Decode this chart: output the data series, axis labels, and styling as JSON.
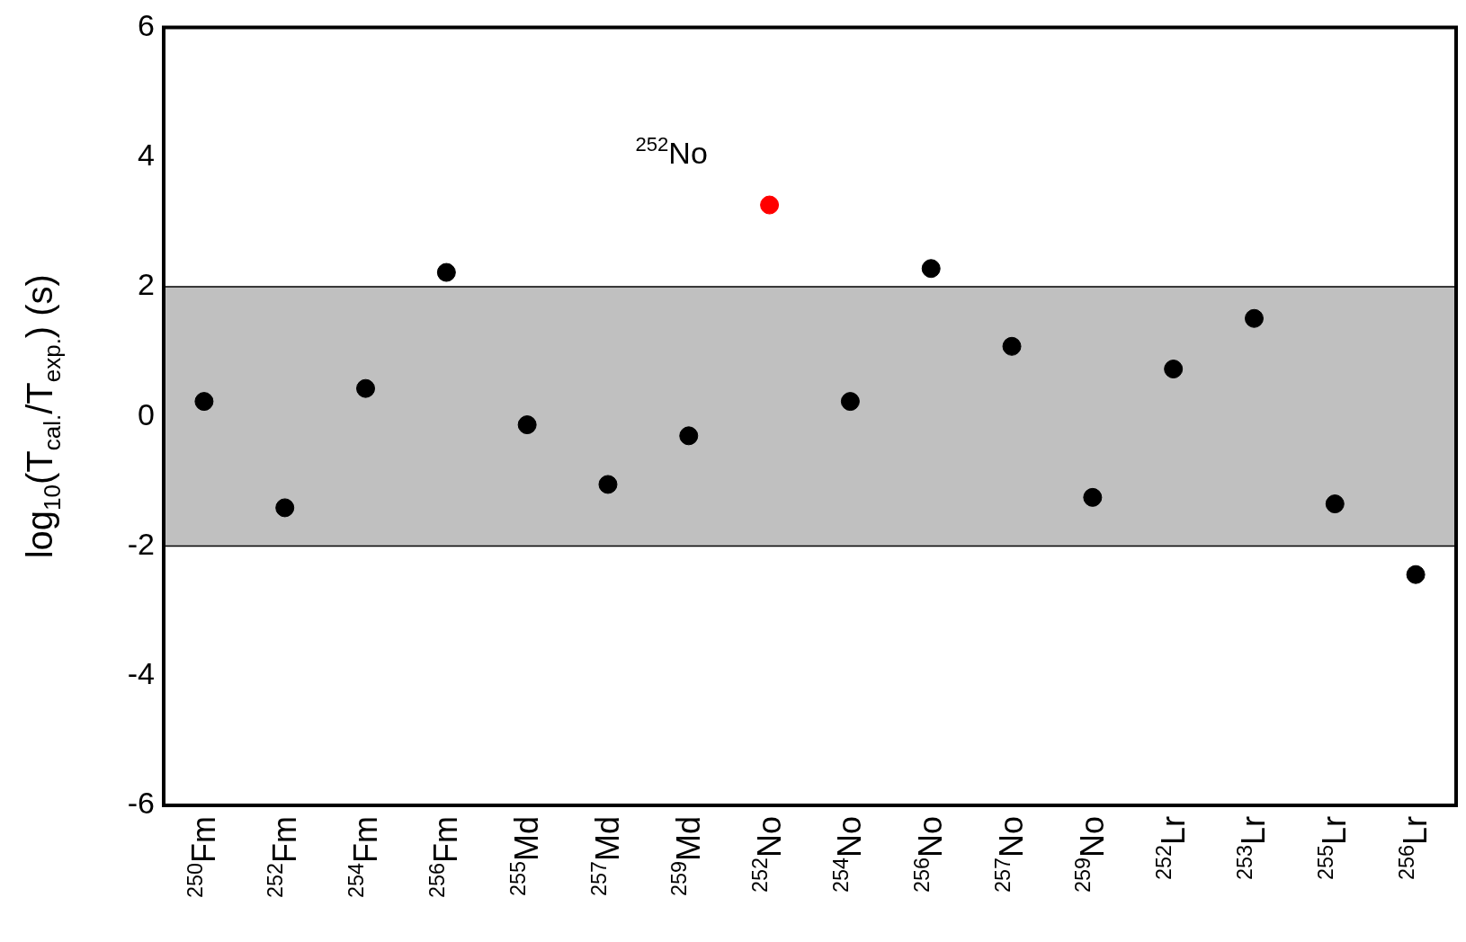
{
  "chart_data": {
    "type": "scatter",
    "ylabel": "log$_{10}$(T$_{cal.}$/T$_{exp.}$) (s)",
    "categories": [
      "$^{250}$Fm",
      "$^{252}$Fm",
      "$^{254}$Fm",
      "$^{256}$Fm",
      "$^{255}$Md",
      "$^{257}$Md",
      "$^{259}$Md",
      "$^{252}$No",
      "$^{254}$No",
      "$^{256}$No",
      "$^{257}$No",
      "$^{259}$No",
      "$^{252}$Lr",
      "$^{253}$Lr",
      "$^{255}$Lr",
      "$^{256}$Lr"
    ],
    "series": [
      {
        "values": [
          0.23,
          -1.41,
          0.43,
          2.22,
          -0.13,
          -1.05,
          -0.3,
          3.26,
          0.23,
          2.28,
          1.08,
          -1.25,
          0.73,
          1.51,
          -1.35,
          -2.44
        ],
        "colors": [
          "#000000",
          "#000000",
          "#000000",
          "#000000",
          "#000000",
          "#000000",
          "#000000",
          "#ff0000",
          "#000000",
          "#000000",
          "#000000",
          "#000000",
          "#000000",
          "#000000",
          "#000000",
          "#000000"
        ]
      }
    ],
    "ylim": [
      -6,
      6
    ],
    "yticks": [
      -6,
      -4,
      -2,
      0,
      2,
      4,
      6
    ],
    "bands": [
      {
        "axis": "y",
        "from": -2,
        "to": 2,
        "color": "#c0c0c0"
      }
    ],
    "annotations": [
      "$^{252}$No"
    ],
    "marker": "circle",
    "legend": false
  }
}
